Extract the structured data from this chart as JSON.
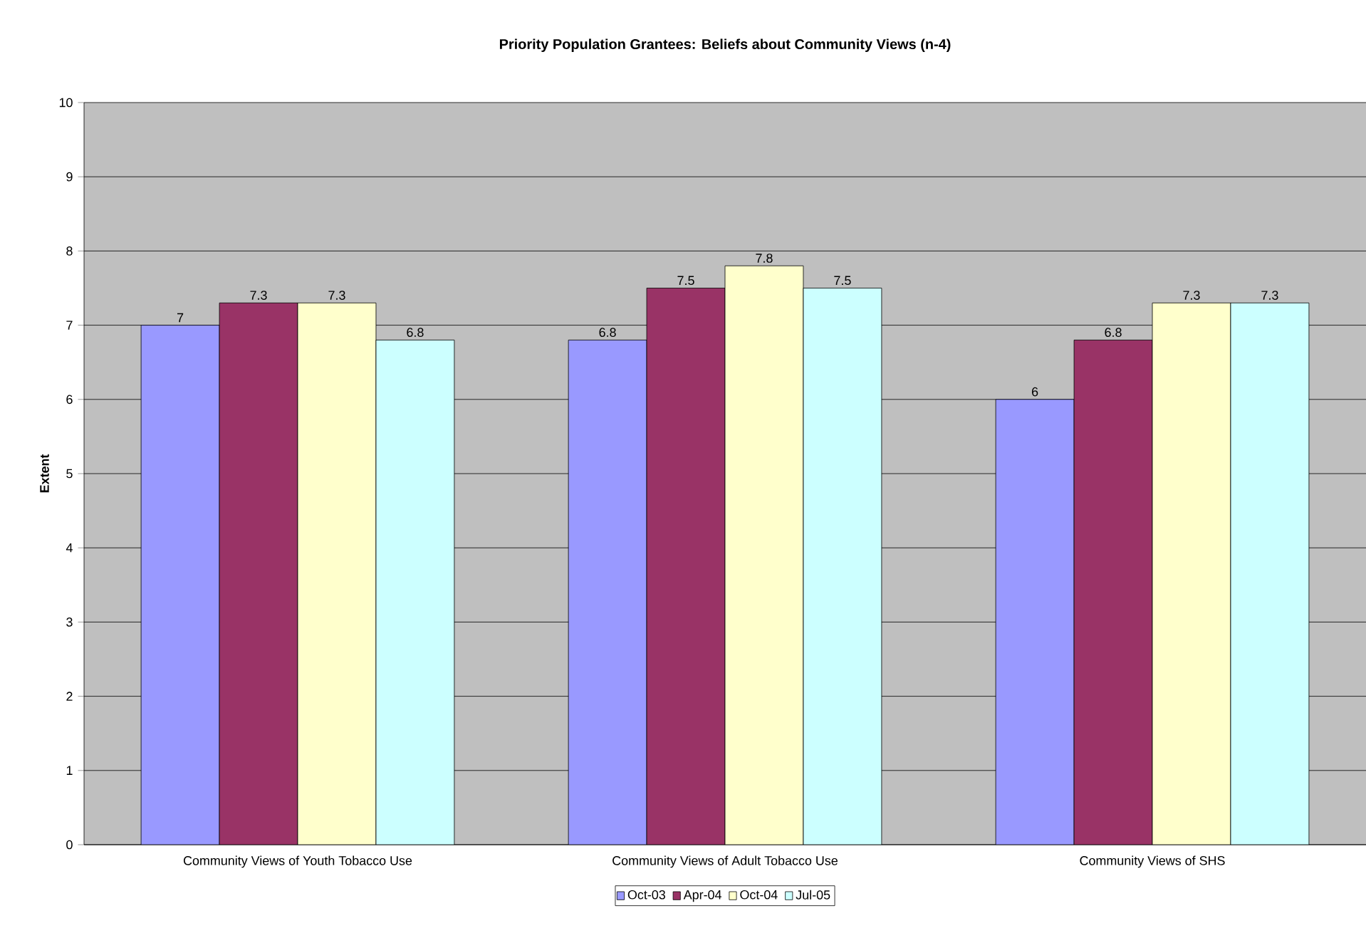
{
  "chart_data": {
    "type": "bar",
    "title": "Priority Population Grantees: Beliefs about Community Views (n-4)",
    "ylabel": "Extent",
    "categories": [
      "Community Views of Youth Tobacco Use",
      "Community Views of Adult Tobacco Use",
      "Community Views of SHS"
    ],
    "series": [
      {
        "name": "Oct-03",
        "color": "#9999ff",
        "values": [
          7,
          6.8,
          6
        ]
      },
      {
        "name": "Apr-04",
        "color": "#993366",
        "values": [
          7.3,
          7.5,
          6.8
        ]
      },
      {
        "name": "Oct-04",
        "color": "#ffffcc",
        "values": [
          7.3,
          7.8,
          7.3
        ]
      },
      {
        "name": "Jul-05",
        "color": "#ccffff",
        "values": [
          6.8,
          7.5,
          7.3
        ]
      }
    ],
    "ylim": [
      0,
      10
    ],
    "yticks": [
      0,
      1,
      2,
      3,
      4,
      5,
      6,
      7,
      8,
      9,
      10
    ],
    "grid": "y",
    "legend": "bottom",
    "data_labels": true
  }
}
